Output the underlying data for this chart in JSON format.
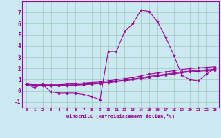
{
  "title": "",
  "xlabel": "Windchill (Refroidissement éolien,°C)",
  "background_color": "#cce8f0",
  "grid_color": "#99ccbb",
  "line_color": "#990099",
  "x_hours": [
    0,
    1,
    2,
    3,
    4,
    5,
    6,
    7,
    8,
    9,
    10,
    11,
    12,
    13,
    14,
    15,
    16,
    17,
    18,
    19,
    20,
    21,
    22,
    23
  ],
  "line1_y": [
    0.6,
    0.3,
    0.6,
    -0.1,
    -0.2,
    -0.2,
    -0.2,
    -0.3,
    -0.5,
    -0.8,
    3.5,
    3.5,
    5.3,
    6.0,
    7.2,
    7.1,
    6.2,
    4.8,
    3.2,
    1.4,
    1.0,
    0.9,
    1.5,
    2.0
  ],
  "line2_y": [
    0.6,
    0.55,
    0.55,
    0.55,
    0.55,
    0.6,
    0.65,
    0.7,
    0.75,
    0.8,
    0.9,
    1.0,
    1.1,
    1.2,
    1.35,
    1.5,
    1.6,
    1.7,
    1.8,
    1.9,
    2.0,
    2.05,
    2.1,
    2.15
  ],
  "line3_y": [
    0.6,
    0.52,
    0.52,
    0.5,
    0.5,
    0.52,
    0.55,
    0.6,
    0.65,
    0.7,
    0.78,
    0.88,
    0.97,
    1.07,
    1.18,
    1.3,
    1.4,
    1.5,
    1.6,
    1.7,
    1.78,
    1.83,
    1.88,
    1.93
  ],
  "line4_y": [
    0.6,
    0.5,
    0.5,
    0.48,
    0.48,
    0.5,
    0.52,
    0.55,
    0.6,
    0.65,
    0.72,
    0.82,
    0.91,
    1.0,
    1.1,
    1.22,
    1.32,
    1.42,
    1.52,
    1.62,
    1.7,
    1.75,
    1.8,
    1.85
  ],
  "ylim": [
    -1.5,
    8.0
  ],
  "yticks": [
    -1,
    0,
    1,
    2,
    3,
    4,
    5,
    6,
    7
  ],
  "xlim": [
    -0.5,
    23.5
  ],
  "xticks": [
    0,
    1,
    2,
    3,
    4,
    5,
    6,
    7,
    8,
    9,
    10,
    11,
    12,
    13,
    14,
    15,
    16,
    17,
    18,
    19,
    20,
    21,
    22,
    23
  ]
}
